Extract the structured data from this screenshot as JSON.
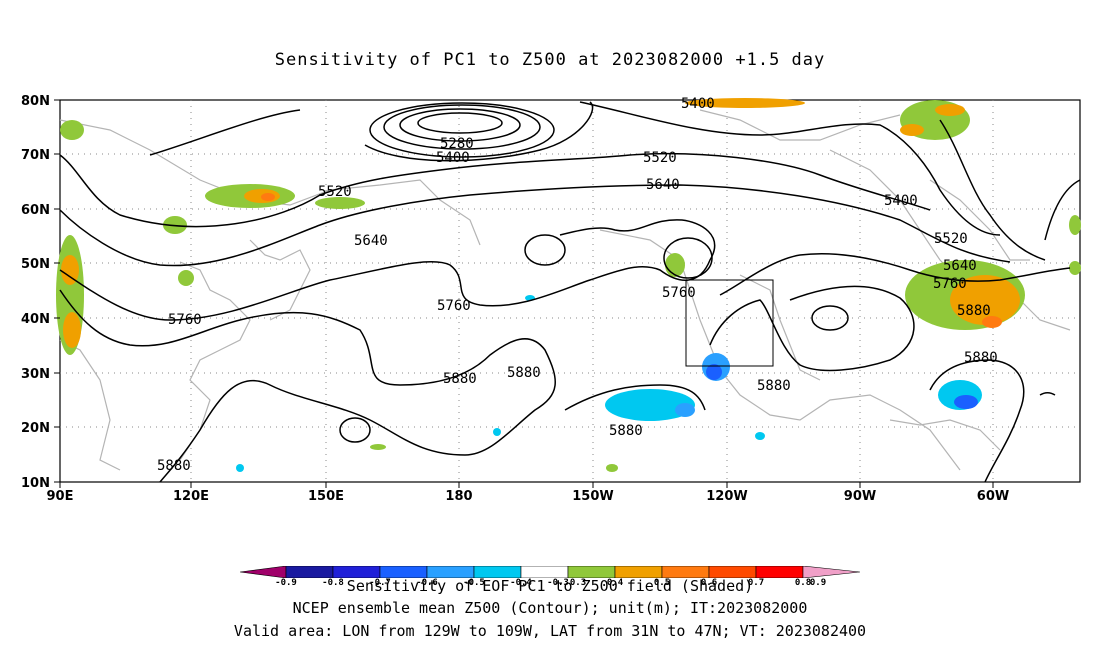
{
  "title": "Sensitivity of PC1 to Z500 at 2023082000 +1.5 day",
  "map": {
    "lat_labels": [
      "80N",
      "70N",
      "60N",
      "50N",
      "40N",
      "30N",
      "20N",
      "10N"
    ],
    "lon_labels": [
      "90E",
      "120E",
      "150E",
      "180",
      "150W",
      "120W",
      "90W",
      "60W"
    ],
    "contour_labels": [
      "5400",
      "5280",
      "5400",
      "5520",
      "5520",
      "5640",
      "5640",
      "5760",
      "5760",
      "5760",
      "5880",
      "5880",
      "5880",
      "5880",
      "5880",
      "5400",
      "5520",
      "5640",
      "5760",
      "5880",
      "5880"
    ],
    "valid_box": {
      "lon_range": [
        "129W",
        "109W"
      ],
      "lat_range": [
        "31N",
        "47N"
      ]
    }
  },
  "colorbar": {
    "colors": [
      "#a0006a",
      "#1a1aa0",
      "#2020d8",
      "#1a60ff",
      "#2aa0ff",
      "#00c8f0",
      "#ffffff",
      "#ffffff",
      "#90c83a",
      "#f0a000",
      "#ff7a10",
      "#ff4a00",
      "#ff0000",
      "#f0a0c8"
    ],
    "tick_labels": [
      "-0.9",
      "-0.8",
      "-0.7",
      "-0.6",
      "-0.5",
      "-0.4",
      "-0.3",
      "0.3",
      "0.4",
      "0.5",
      "0.6",
      "0.7",
      "0.8",
      "0.9"
    ]
  },
  "footer": {
    "line1": "Sensitivity of EOF PC1 to Z500 field (Shaded)",
    "line2": "NCEP ensemble mean Z500 (Contour); unit(m); IT:2023082000",
    "line3": "Valid area: LON from 129W to 109W, LAT from 31N to 47N; VT: 2023082400"
  }
}
